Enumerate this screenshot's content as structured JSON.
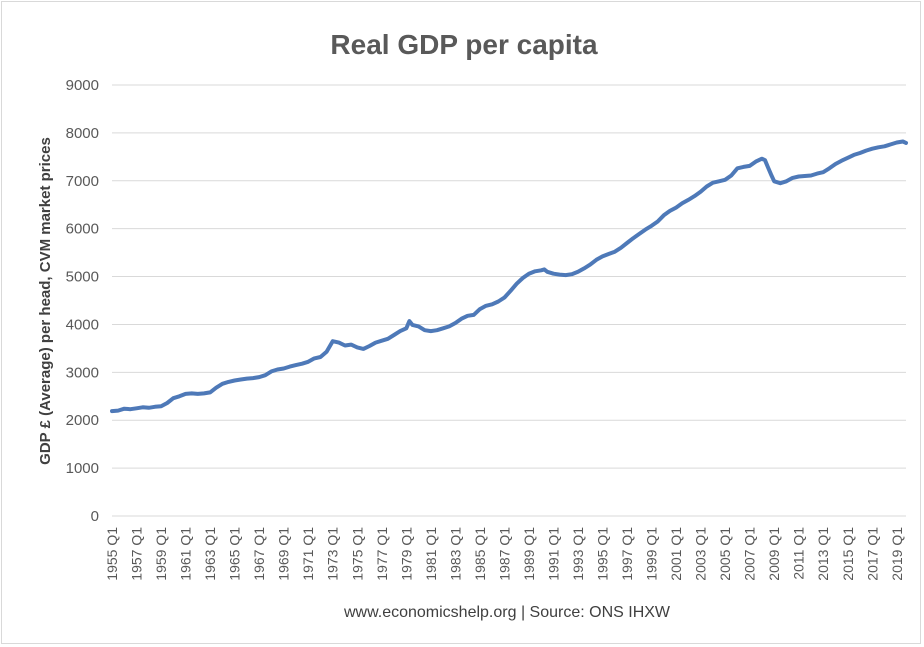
{
  "chart_data": {
    "type": "line",
    "title": "Real GDP per capita",
    "xlabel": "www.economicshelp.org | Source: ONS IHXW",
    "ylabel": "GDP £  (Average) per head, CVM market prices",
    "ylim": [
      0,
      9000
    ],
    "yticks": [
      0,
      1000,
      2000,
      3000,
      4000,
      5000,
      6000,
      7000,
      8000,
      9000
    ],
    "grid": true,
    "legend": "none",
    "x_tick_labels": [
      "1955 Q1",
      "1957 Q1",
      "1959 Q1",
      "1961 Q1",
      "1963 Q1",
      "1965 Q1",
      "1967 Q1",
      "1969 Q1",
      "1971 Q1",
      "1973 Q1",
      "1975 Q1",
      "1977 Q1",
      "1979 Q1",
      "1981 Q1",
      "1983 Q1",
      "1985 Q1",
      "1987 Q1",
      "1989 Q1",
      "1991 Q1",
      "1993 Q1",
      "1995 Q1",
      "1997 Q1",
      "1999 Q1",
      "2001 Q1",
      "2003 Q1",
      "2005 Q1",
      "2007 Q1",
      "2009 Q1",
      "2011 Q1",
      "2013 Q1",
      "2015 Q1",
      "2017 Q1",
      "2019 Q1"
    ],
    "x_start": "1955 Q1",
    "x_end": "2019 Q4",
    "series": [
      {
        "color": "#4e79b8",
        "points": [
          [
            "1955 Q1",
            2190
          ],
          [
            "1955 Q3",
            2200
          ],
          [
            "1956 Q1",
            2240
          ],
          [
            "1956 Q3",
            2230
          ],
          [
            "1957 Q1",
            2250
          ],
          [
            "1957 Q3",
            2270
          ],
          [
            "1958 Q1",
            2260
          ],
          [
            "1958 Q3",
            2280
          ],
          [
            "1959 Q1",
            2290
          ],
          [
            "1959 Q3",
            2360
          ],
          [
            "1960 Q1",
            2460
          ],
          [
            "1960 Q3",
            2500
          ],
          [
            "1961 Q1",
            2550
          ],
          [
            "1961 Q3",
            2560
          ],
          [
            "1962 Q1",
            2550
          ],
          [
            "1962 Q3",
            2560
          ],
          [
            "1963 Q1",
            2580
          ],
          [
            "1963 Q3",
            2680
          ],
          [
            "1964 Q1",
            2760
          ],
          [
            "1964 Q3",
            2800
          ],
          [
            "1965 Q1",
            2830
          ],
          [
            "1965 Q3",
            2850
          ],
          [
            "1966 Q1",
            2870
          ],
          [
            "1966 Q3",
            2880
          ],
          [
            "1967 Q1",
            2900
          ],
          [
            "1967 Q3",
            2940
          ],
          [
            "1968 Q1",
            3020
          ],
          [
            "1968 Q3",
            3060
          ],
          [
            "1969 Q1",
            3080
          ],
          [
            "1969 Q3",
            3120
          ],
          [
            "1970 Q1",
            3150
          ],
          [
            "1970 Q3",
            3180
          ],
          [
            "1971 Q1",
            3220
          ],
          [
            "1971 Q3",
            3290
          ],
          [
            "1972 Q1",
            3320
          ],
          [
            "1972 Q3",
            3430
          ],
          [
            "1973 Q1",
            3650
          ],
          [
            "1973 Q3",
            3620
          ],
          [
            "1974 Q1",
            3560
          ],
          [
            "1974 Q3",
            3580
          ],
          [
            "1975 Q1",
            3520
          ],
          [
            "1975 Q3",
            3490
          ],
          [
            "1976 Q1",
            3550
          ],
          [
            "1976 Q3",
            3620
          ],
          [
            "1977 Q1",
            3660
          ],
          [
            "1977 Q3",
            3700
          ],
          [
            "1978 Q1",
            3780
          ],
          [
            "1978 Q3",
            3860
          ],
          [
            "1979 Q1",
            3920
          ],
          [
            "1979 Q2",
            4070
          ],
          [
            "1979 Q3",
            3990
          ],
          [
            "1980 Q1",
            3960
          ],
          [
            "1980 Q3",
            3880
          ],
          [
            "1981 Q1",
            3860
          ],
          [
            "1981 Q3",
            3880
          ],
          [
            "1982 Q1",
            3920
          ],
          [
            "1982 Q3",
            3960
          ],
          [
            "1983 Q1",
            4030
          ],
          [
            "1983 Q3",
            4120
          ],
          [
            "1984 Q1",
            4180
          ],
          [
            "1984 Q3",
            4200
          ],
          [
            "1985 Q1",
            4320
          ],
          [
            "1985 Q3",
            4390
          ],
          [
            "1986 Q1",
            4420
          ],
          [
            "1986 Q3",
            4480
          ],
          [
            "1987 Q1",
            4560
          ],
          [
            "1987 Q3",
            4700
          ],
          [
            "1988 Q1",
            4850
          ],
          [
            "1988 Q3",
            4970
          ],
          [
            "1989 Q1",
            5060
          ],
          [
            "1989 Q3",
            5110
          ],
          [
            "1990 Q1",
            5130
          ],
          [
            "1990 Q2",
            5150
          ],
          [
            "1990 Q3",
            5100
          ],
          [
            "1991 Q1",
            5060
          ],
          [
            "1991 Q3",
            5040
          ],
          [
            "1992 Q1",
            5030
          ],
          [
            "1992 Q3",
            5050
          ],
          [
            "1993 Q1",
            5100
          ],
          [
            "1993 Q3",
            5170
          ],
          [
            "1994 Q1",
            5250
          ],
          [
            "1994 Q3",
            5350
          ],
          [
            "1995 Q1",
            5420
          ],
          [
            "1995 Q3",
            5470
          ],
          [
            "1996 Q1",
            5520
          ],
          [
            "1996 Q3",
            5600
          ],
          [
            "1997 Q1",
            5700
          ],
          [
            "1997 Q3",
            5800
          ],
          [
            "1998 Q1",
            5890
          ],
          [
            "1998 Q3",
            5980
          ],
          [
            "1999 Q1",
            6060
          ],
          [
            "1999 Q3",
            6150
          ],
          [
            "2000 Q1",
            6280
          ],
          [
            "2000 Q3",
            6370
          ],
          [
            "2001 Q1",
            6440
          ],
          [
            "2001 Q3",
            6530
          ],
          [
            "2002 Q1",
            6600
          ],
          [
            "2002 Q3",
            6680
          ],
          [
            "2003 Q1",
            6770
          ],
          [
            "2003 Q3",
            6880
          ],
          [
            "2004 Q1",
            6960
          ],
          [
            "2004 Q3",
            6990
          ],
          [
            "2005 Q1",
            7020
          ],
          [
            "2005 Q3",
            7110
          ],
          [
            "2006 Q1",
            7260
          ],
          [
            "2006 Q3",
            7290
          ],
          [
            "2007 Q1",
            7310
          ],
          [
            "2007 Q3",
            7400
          ],
          [
            "2008 Q1",
            7460
          ],
          [
            "2008 Q2",
            7430
          ],
          [
            "2008 Q3",
            7280
          ],
          [
            "2008 Q4",
            7130
          ],
          [
            "2009 Q1",
            6990
          ],
          [
            "2009 Q3",
            6950
          ],
          [
            "2010 Q1",
            6990
          ],
          [
            "2010 Q3",
            7060
          ],
          [
            "2011 Q1",
            7090
          ],
          [
            "2011 Q3",
            7100
          ],
          [
            "2012 Q1",
            7110
          ],
          [
            "2012 Q3",
            7150
          ],
          [
            "2013 Q1",
            7180
          ],
          [
            "2013 Q3",
            7260
          ],
          [
            "2014 Q1",
            7350
          ],
          [
            "2014 Q3",
            7420
          ],
          [
            "2015 Q1",
            7480
          ],
          [
            "2015 Q3",
            7540
          ],
          [
            "2016 Q1",
            7580
          ],
          [
            "2016 Q3",
            7630
          ],
          [
            "2017 Q1",
            7670
          ],
          [
            "2017 Q3",
            7700
          ],
          [
            "2018 Q1",
            7720
          ],
          [
            "2018 Q3",
            7760
          ],
          [
            "2019 Q1",
            7800
          ],
          [
            "2019 Q3",
            7820
          ],
          [
            "2019 Q4",
            7790
          ]
        ]
      }
    ]
  }
}
